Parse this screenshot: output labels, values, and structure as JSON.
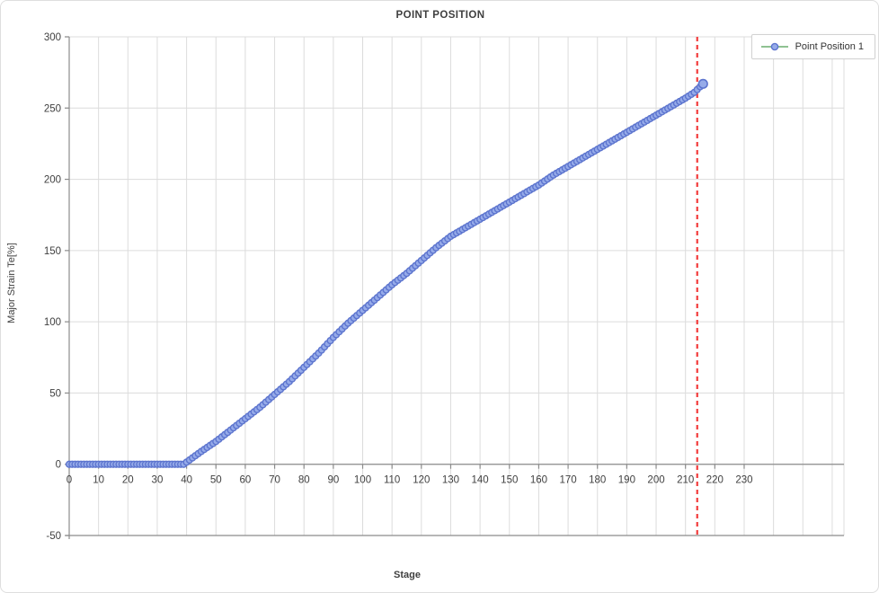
{
  "chart_data": {
    "type": "scatter",
    "title": "POINT POSITION",
    "xlabel": "Stage",
    "ylabel": "Major Strain Te[%]",
    "xlim": [
      0,
      264
    ],
    "ylim": [
      -50,
      300
    ],
    "x_ticks": [
      0,
      10,
      20,
      30,
      40,
      50,
      60,
      70,
      80,
      90,
      100,
      110,
      120,
      130,
      140,
      150,
      160,
      170,
      180,
      190,
      200,
      210,
      220,
      230
    ],
    "y_ticks": [
      -50,
      0,
      50,
      100,
      150,
      200,
      250,
      300
    ],
    "x_grid_step": 10,
    "grid": true,
    "colors": {
      "gridline": "#dcdcdc",
      "axis": "#8c8c8c",
      "tick_label": "#404040",
      "marker_fill": "#96abe9",
      "marker_stroke": "#5c74ce",
      "cursor_line": "#f23c3c",
      "legend_line": "#8fc292"
    },
    "legend": {
      "position": "top-right",
      "entries": [
        {
          "label": "Point Position 1",
          "marker": "circle"
        }
      ]
    },
    "series": [
      {
        "name": "Point Position 1",
        "marker_step": 1,
        "anchors": [
          [
            0,
            0
          ],
          [
            5,
            0
          ],
          [
            10,
            0
          ],
          [
            15,
            0
          ],
          [
            20,
            0
          ],
          [
            25,
            0
          ],
          [
            30,
            0
          ],
          [
            35,
            0
          ],
          [
            39,
            0
          ],
          [
            45,
            9
          ],
          [
            50,
            16
          ],
          [
            55,
            24
          ],
          [
            60,
            32
          ],
          [
            65,
            40
          ],
          [
            70,
            49
          ],
          [
            75,
            58
          ],
          [
            80,
            68
          ],
          [
            85,
            78
          ],
          [
            90,
            89
          ],
          [
            95,
            99
          ],
          [
            100,
            108
          ],
          [
            105,
            117
          ],
          [
            110,
            126
          ],
          [
            115,
            134
          ],
          [
            120,
            143
          ],
          [
            125,
            152
          ],
          [
            130,
            160
          ],
          [
            135,
            166
          ],
          [
            140,
            172
          ],
          [
            145,
            178
          ],
          [
            150,
            184
          ],
          [
            155,
            190
          ],
          [
            160,
            196
          ],
          [
            165,
            203
          ],
          [
            170,
            209
          ],
          [
            175,
            215
          ],
          [
            180,
            221
          ],
          [
            185,
            227
          ],
          [
            190,
            233
          ],
          [
            195,
            239
          ],
          [
            200,
            245
          ],
          [
            205,
            251
          ],
          [
            210,
            257
          ],
          [
            213,
            261
          ],
          [
            216,
            267
          ]
        ],
        "final_marker": {
          "stage": 216,
          "value": 267
        }
      }
    ],
    "annotations": [
      {
        "type": "vline",
        "x": 214,
        "style": "dashed",
        "label": "current-stage-cursor"
      }
    ]
  }
}
